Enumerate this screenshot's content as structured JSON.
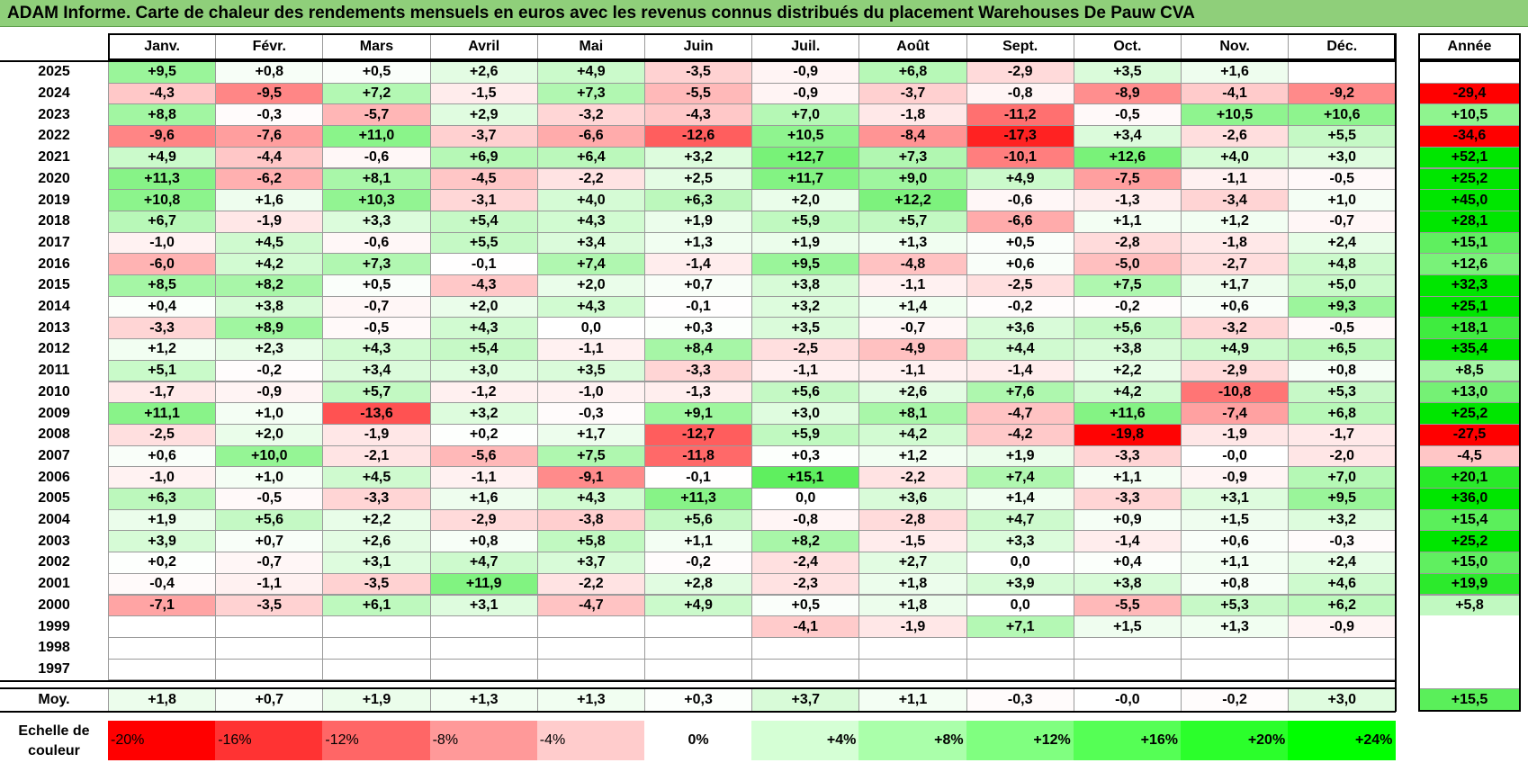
{
  "title": "ADAM Informe. Carte de chaleur des rendements mensuels en euros avec les revenus connus distribués du placement Warehouses De Pauw CVA",
  "chart_data": {
    "type": "heatmap",
    "months": [
      "Janv.",
      "Févr.",
      "Mars",
      "Avril",
      "Mai",
      "Juin",
      "Juil.",
      "Août",
      "Sept.",
      "Oct.",
      "Nov.",
      "Déc."
    ],
    "year_column_label": "Année",
    "average_row_label": "Moy.",
    "rows": [
      {
        "year": "2025",
        "values": [
          "+9,5",
          "+0,8",
          "+0,5",
          "+2,6",
          "+4,9",
          "-3,5",
          "-0,9",
          "+6,8",
          "-2,9",
          "+3,5",
          "+1,6",
          ""
        ],
        "annual": ""
      },
      {
        "year": "2024",
        "values": [
          "-4,3",
          "-9,5",
          "+7,2",
          "-1,5",
          "+7,3",
          "-5,5",
          "-0,9",
          "-3,7",
          "-0,8",
          "-8,9",
          "-4,1",
          "-9,2"
        ],
        "annual": "-29,4"
      },
      {
        "year": "2023",
        "values": [
          "+8,8",
          "-0,3",
          "-5,7",
          "+2,9",
          "-3,2",
          "-4,3",
          "+7,0",
          "-1,8",
          "-11,2",
          "-0,5",
          "+10,5",
          "+10,6"
        ],
        "annual": "+10,5"
      },
      {
        "year": "2022",
        "values": [
          "-9,6",
          "-7,6",
          "+11,0",
          "-3,7",
          "-6,6",
          "-12,6",
          "+10,5",
          "-8,4",
          "-17,3",
          "+3,4",
          "-2,6",
          "+5,5"
        ],
        "annual": "-34,6"
      },
      {
        "year": "2021",
        "values": [
          "+4,9",
          "-4,4",
          "-0,6",
          "+6,9",
          "+6,4",
          "+3,2",
          "+12,7",
          "+7,3",
          "-10,1",
          "+12,6",
          "+4,0",
          "+3,0"
        ],
        "annual": "+52,1"
      },
      {
        "year": "2020",
        "values": [
          "+11,3",
          "-6,2",
          "+8,1",
          "-4,5",
          "-2,2",
          "+2,5",
          "+11,7",
          "+9,0",
          "+4,9",
          "-7,5",
          "-1,1",
          "-0,5"
        ],
        "annual": "+25,2"
      },
      {
        "year": "2019",
        "values": [
          "+10,8",
          "+1,6",
          "+10,3",
          "-3,1",
          "+4,0",
          "+6,3",
          "+2,0",
          "+12,2",
          "-0,6",
          "-1,3",
          "-3,4",
          "+1,0"
        ],
        "annual": "+45,0"
      },
      {
        "year": "2018",
        "values": [
          "+6,7",
          "-1,9",
          "+3,3",
          "+5,4",
          "+4,3",
          "+1,9",
          "+5,9",
          "+5,7",
          "-6,6",
          "+1,1",
          "+1,2",
          "-0,7"
        ],
        "annual": "+28,1"
      },
      {
        "year": "2017",
        "values": [
          "-1,0",
          "+4,5",
          "-0,6",
          "+5,5",
          "+3,4",
          "+1,3",
          "+1,9",
          "+1,3",
          "+0,5",
          "-2,8",
          "-1,8",
          "+2,4"
        ],
        "annual": "+15,1"
      },
      {
        "year": "2016",
        "values": [
          "-6,0",
          "+4,2",
          "+7,3",
          "-0,1",
          "+7,4",
          "-1,4",
          "+9,5",
          "-4,8",
          "+0,6",
          "-5,0",
          "-2,7",
          "+4,8"
        ],
        "annual": "+12,6"
      },
      {
        "year": "2015",
        "values": [
          "+8,5",
          "+8,2",
          "+0,5",
          "-4,3",
          "+2,0",
          "+0,7",
          "+3,8",
          "-1,1",
          "-2,5",
          "+7,5",
          "+1,7",
          "+5,0"
        ],
        "annual": "+32,3"
      },
      {
        "year": "2014",
        "values": [
          "+0,4",
          "+3,8",
          "-0,7",
          "+2,0",
          "+4,3",
          "-0,1",
          "+3,2",
          "+1,4",
          "-0,2",
          "-0,2",
          "+0,6",
          "+9,3"
        ],
        "annual": "+25,1"
      },
      {
        "year": "2013",
        "values": [
          "-3,3",
          "+8,9",
          "-0,5",
          "+4,3",
          "0,0",
          "+0,3",
          "+3,5",
          "-0,7",
          "+3,6",
          "+5,6",
          "-3,2",
          "-0,5"
        ],
        "annual": "+18,1"
      },
      {
        "year": "2012",
        "values": [
          "+1,2",
          "+2,3",
          "+4,3",
          "+5,4",
          "-1,1",
          "+8,4",
          "-2,5",
          "-4,9",
          "+4,4",
          "+3,8",
          "+4,9",
          "+6,5"
        ],
        "annual": "+35,4"
      },
      {
        "year": "2011",
        "values": [
          "+5,1",
          "-0,2",
          "+3,4",
          "+3,0",
          "+3,5",
          "-3,3",
          "-1,1",
          "-1,1",
          "-1,4",
          "+2,2",
          "-2,9",
          "+0,8"
        ],
        "annual": "+8,5"
      },
      {
        "year": "2010",
        "values": [
          "-1,7",
          "-0,9",
          "+5,7",
          "-1,2",
          "-1,0",
          "-1,3",
          "+5,6",
          "+2,6",
          "+7,6",
          "+4,2",
          "-10,8",
          "+5,3"
        ],
        "annual": "+13,0"
      },
      {
        "year": "2009",
        "values": [
          "+11,1",
          "+1,0",
          "-13,6",
          "+3,2",
          "-0,3",
          "+9,1",
          "+3,0",
          "+8,1",
          "-4,7",
          "+11,6",
          "-7,4",
          "+6,8"
        ],
        "annual": "+25,2"
      },
      {
        "year": "2008",
        "values": [
          "-2,5",
          "+2,0",
          "-1,9",
          "+0,2",
          "+1,7",
          "-12,7",
          "+5,9",
          "+4,2",
          "-4,2",
          "-19,8",
          "-1,9",
          "-1,7"
        ],
        "annual": "-27,5"
      },
      {
        "year": "2007",
        "values": [
          "+0,6",
          "+10,0",
          "-2,1",
          "-5,6",
          "+7,5",
          "-11,8",
          "+0,3",
          "+1,2",
          "+1,9",
          "-3,3",
          "-0,0",
          "-2,0"
        ],
        "annual": "-4,5"
      },
      {
        "year": "2006",
        "values": [
          "-1,0",
          "+1,0",
          "+4,5",
          "-1,1",
          "-9,1",
          "-0,1",
          "+15,1",
          "-2,2",
          "+7,4",
          "+1,1",
          "-0,9",
          "+7,0"
        ],
        "annual": "+20,1"
      },
      {
        "year": "2005",
        "values": [
          "+6,3",
          "-0,5",
          "-3,3",
          "+1,6",
          "+4,3",
          "+11,3",
          "0,0",
          "+3,6",
          "+1,4",
          "-3,3",
          "+3,1",
          "+9,5"
        ],
        "annual": "+36,0"
      },
      {
        "year": "2004",
        "values": [
          "+1,9",
          "+5,6",
          "+2,2",
          "-2,9",
          "-3,8",
          "+5,6",
          "-0,8",
          "-2,8",
          "+4,7",
          "+0,9",
          "+1,5",
          "+3,2"
        ],
        "annual": "+15,4"
      },
      {
        "year": "2003",
        "values": [
          "+3,9",
          "+0,7",
          "+2,6",
          "+0,8",
          "+5,8",
          "+1,1",
          "+8,2",
          "-1,5",
          "+3,3",
          "-1,4",
          "+0,6",
          "-0,3"
        ],
        "annual": "+25,2"
      },
      {
        "year": "2002",
        "values": [
          "+0,2",
          "-0,7",
          "+3,1",
          "+4,7",
          "+3,7",
          "-0,2",
          "-2,4",
          "+2,7",
          "0,0",
          "+0,4",
          "+1,1",
          "+2,4"
        ],
        "annual": "+15,0"
      },
      {
        "year": "2001",
        "values": [
          "-0,4",
          "-1,1",
          "-3,5",
          "+11,9",
          "-2,2",
          "+2,8",
          "-2,3",
          "+1,8",
          "+3,9",
          "+3,8",
          "+0,8",
          "+4,6"
        ],
        "annual": "+19,9"
      },
      {
        "year": "2000",
        "values": [
          "-7,1",
          "-3,5",
          "+6,1",
          "+3,1",
          "-4,7",
          "+4,9",
          "+0,5",
          "+1,8",
          "0,0",
          "-5,5",
          "+5,3",
          "+6,2"
        ],
        "annual": "+5,8"
      },
      {
        "year": "1999",
        "values": [
          "",
          "",
          "",
          "",
          "",
          "",
          "-4,1",
          "-1,9",
          "+7,1",
          "+1,5",
          "+1,3",
          "-0,9"
        ],
        "annual": ""
      },
      {
        "year": "1998",
        "values": [
          "",
          "",
          "",
          "",
          "",
          "",
          "",
          "",
          "",
          "",
          "",
          ""
        ],
        "annual": ""
      },
      {
        "year": "1997",
        "values": [
          "",
          "",
          "",
          "",
          "",
          "",
          "",
          "",
          "",
          "",
          "",
          ""
        ],
        "annual": ""
      }
    ],
    "average": {
      "values": [
        "+1,8",
        "+0,7",
        "+1,9",
        "+1,3",
        "+1,3",
        "+0,3",
        "+3,7",
        "+1,1",
        "-0,3",
        "-0,0",
        "-0,2",
        "+3,0"
      ],
      "annual": "+15,5"
    },
    "legend": {
      "label_line1": "Echelle de",
      "label_line2": "couleur",
      "steps": [
        {
          "label": "-20%",
          "value": -20,
          "color": "#ff0000"
        },
        {
          "label": "-16%",
          "value": -16,
          "color": "#ff3333"
        },
        {
          "label": "-12%",
          "value": -12,
          "color": "#ff6666"
        },
        {
          "label": "-8%",
          "value": -8,
          "color": "#ff9999"
        },
        {
          "label": "-4%",
          "value": -4,
          "color": "#ffcccc"
        },
        {
          "label": "0%",
          "value": 0,
          "color": "#ffffff"
        },
        {
          "label": "+4%",
          "value": 4,
          "color": "#d5ffd5"
        },
        {
          "label": "+8%",
          "value": 8,
          "color": "#aaffaa"
        },
        {
          "label": "+12%",
          "value": 12,
          "color": "#80ff80"
        },
        {
          "label": "+16%",
          "value": 16,
          "color": "#55ff55"
        },
        {
          "label": "+20%",
          "value": 20,
          "color": "#2bff2b"
        },
        {
          "label": "+24%",
          "value": 24,
          "color": "#00ff00"
        }
      ]
    },
    "colors": {
      "negative_max": "#ff0000",
      "neutral": "#ffffff",
      "positive_max": "#00e600"
    }
  }
}
